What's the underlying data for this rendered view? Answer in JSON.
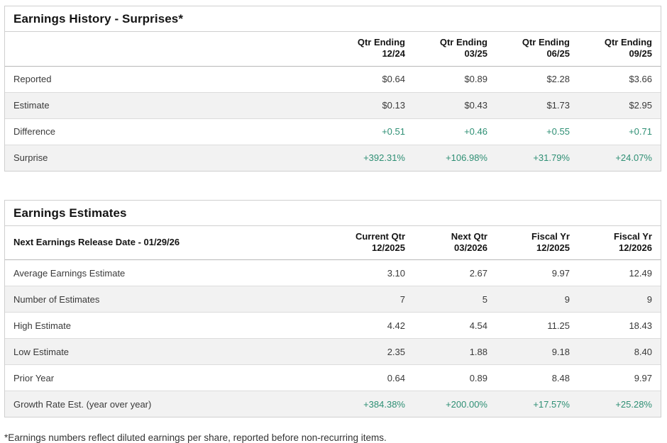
{
  "colors": {
    "positive_green": "#2e8f74",
    "row_alt_bg": "#f2f2f2",
    "border": "#cfcfcf",
    "title_text": "#141414",
    "body_text": "#3a3a3a"
  },
  "earnings_history": {
    "title": "Earnings History - Surprises*",
    "columns": [
      {
        "line1": "Qtr Ending",
        "line2": "12/24"
      },
      {
        "line1": "Qtr Ending",
        "line2": "03/25"
      },
      {
        "line1": "Qtr Ending",
        "line2": "06/25"
      },
      {
        "line1": "Qtr Ending",
        "line2": "09/25"
      }
    ],
    "rows": [
      {
        "label": "Reported",
        "values": [
          "$0.64",
          "$0.89",
          "$2.28",
          "$3.66"
        ]
      },
      {
        "label": "Estimate",
        "values": [
          "$0.13",
          "$0.43",
          "$1.73",
          "$2.95"
        ]
      },
      {
        "label": "Difference",
        "values": [
          "+0.51",
          "+0.46",
          "+0.55",
          "+0.71"
        ]
      },
      {
        "label": "Surprise",
        "values": [
          "+392.31%",
          "+106.98%",
          "+31.79%",
          "+24.07%"
        ]
      }
    ]
  },
  "earnings_estimates": {
    "title": "Earnings Estimates",
    "release_label": "Next Earnings Release Date - 01/29/26",
    "columns": [
      {
        "line1": "Current Qtr",
        "line2": "12/2025"
      },
      {
        "line1": "Next Qtr",
        "line2": "03/2026"
      },
      {
        "line1": "Fiscal Yr",
        "line2": "12/2025"
      },
      {
        "line1": "Fiscal Yr",
        "line2": "12/2026"
      }
    ],
    "rows": [
      {
        "label": "Average Earnings Estimate",
        "values": [
          "3.10",
          "2.67",
          "9.97",
          "12.49"
        ]
      },
      {
        "label": "Number of Estimates",
        "values": [
          "7",
          "5",
          "9",
          "9"
        ]
      },
      {
        "label": "High Estimate",
        "values": [
          "4.42",
          "4.54",
          "11.25",
          "18.43"
        ]
      },
      {
        "label": "Low Estimate",
        "values": [
          "2.35",
          "1.88",
          "9.18",
          "8.40"
        ]
      },
      {
        "label": "Prior Year",
        "values": [
          "0.64",
          "0.89",
          "8.48",
          "9.97"
        ]
      },
      {
        "label": "Growth Rate Est. (year over year)",
        "values": [
          "+384.38%",
          "+200.00%",
          "+17.57%",
          "+25.28%"
        ]
      }
    ]
  },
  "footnote": "*Earnings numbers reflect diluted earnings per share, reported before non-recurring items."
}
